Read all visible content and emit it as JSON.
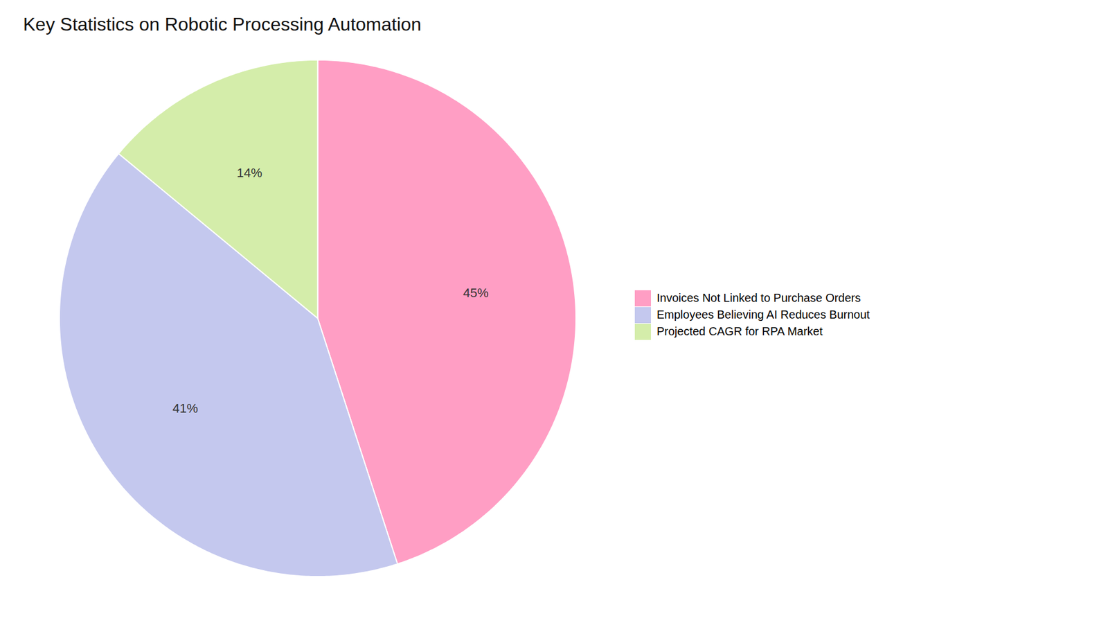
{
  "chart_data": {
    "type": "pie",
    "title": "Key Statistics on Robotic Processing Automation",
    "categories": [
      "Invoices Not Linked to Purchase Orders",
      "Employees Believing AI Reduces Burnout",
      "Projected CAGR for RPA Market"
    ],
    "values": [
      45,
      41,
      14
    ],
    "value_labels": [
      "45%",
      "41%",
      "14%"
    ],
    "colors": [
      "#FF9EC4",
      "#C4C8EE",
      "#D4EDAA"
    ],
    "data_labels": true,
    "legend": "right"
  }
}
